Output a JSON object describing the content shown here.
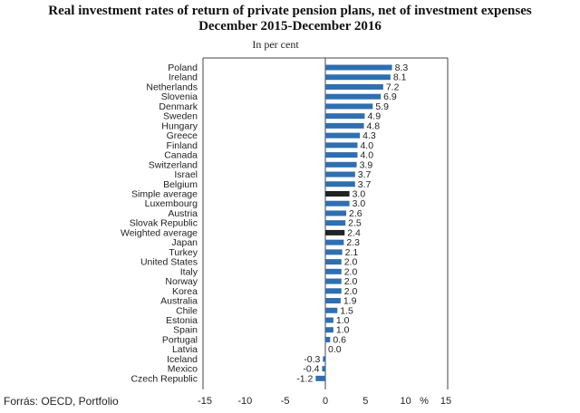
{
  "chart_data": {
    "type": "bar",
    "orientation": "horizontal",
    "title": "Real investment rates of return of private pension plans, net of investment expenses",
    "subtitle": "December 2015-December 2016",
    "unit_note": "In per cent",
    "x_unit": "%",
    "xlim": [
      -15,
      15
    ],
    "x_ticks": [
      -15,
      -10,
      -5,
      0,
      5,
      10,
      15
    ],
    "categories": [
      "Poland",
      "Ireland",
      "Netherlands",
      "Slovenia",
      "Denmark",
      "Sweden",
      "Hungary",
      "Greece",
      "Finland",
      "Canada",
      "Switzerland",
      "Israel",
      "Belgium",
      "Simple average",
      "Luxembourg",
      "Austria",
      "Slovak Republic",
      "Weighted average",
      "Japan",
      "Turkey",
      "United States",
      "Italy",
      "Norway",
      "Korea",
      "Australia",
      "Chile",
      "Estonia",
      "Spain",
      "Portugal",
      "Latvia",
      "Iceland",
      "Mexico",
      "Czech Republic"
    ],
    "values": [
      8.3,
      8.1,
      7.2,
      6.9,
      5.9,
      4.9,
      4.8,
      4.3,
      4.0,
      4.0,
      3.9,
      3.7,
      3.7,
      3.0,
      3.0,
      2.6,
      2.5,
      2.4,
      2.3,
      2.1,
      2.0,
      2.0,
      2.0,
      2.0,
      1.9,
      1.5,
      1.0,
      1.0,
      0.6,
      0.0,
      -0.3,
      -0.4,
      -1.2
    ],
    "labels": [
      "8.3",
      "8.1",
      "7.2",
      "6.9",
      "5.9",
      "4.9",
      "4.8",
      "4.3",
      "4.0",
      "4.0",
      "3.9",
      "3.7",
      "3.7",
      "3.0",
      "3.0",
      "2.6",
      "2.5",
      "2.4",
      "2.3",
      "2.1",
      "2.0",
      "2.0",
      "2.0",
      "2.0",
      "1.9",
      "1.5",
      "1.0",
      "1.0",
      "0.6",
      "0.0",
      "-0.3",
      "-0.4",
      "-1.2"
    ],
    "highlight": [
      "Simple average",
      "Weighted average"
    ],
    "colors": {
      "bar": "#2f6fb0",
      "highlight": "#222222",
      "axis": "#444444"
    },
    "grid": false,
    "legend": "none"
  },
  "header": {
    "title_line1": "Real investment rates of return of private pension plans, net of investment expenses",
    "title_line2": "December 2015-December 2016",
    "unit_note": "In per cent"
  },
  "footer": {
    "source": "Forrás: OECD, Portfolio"
  }
}
